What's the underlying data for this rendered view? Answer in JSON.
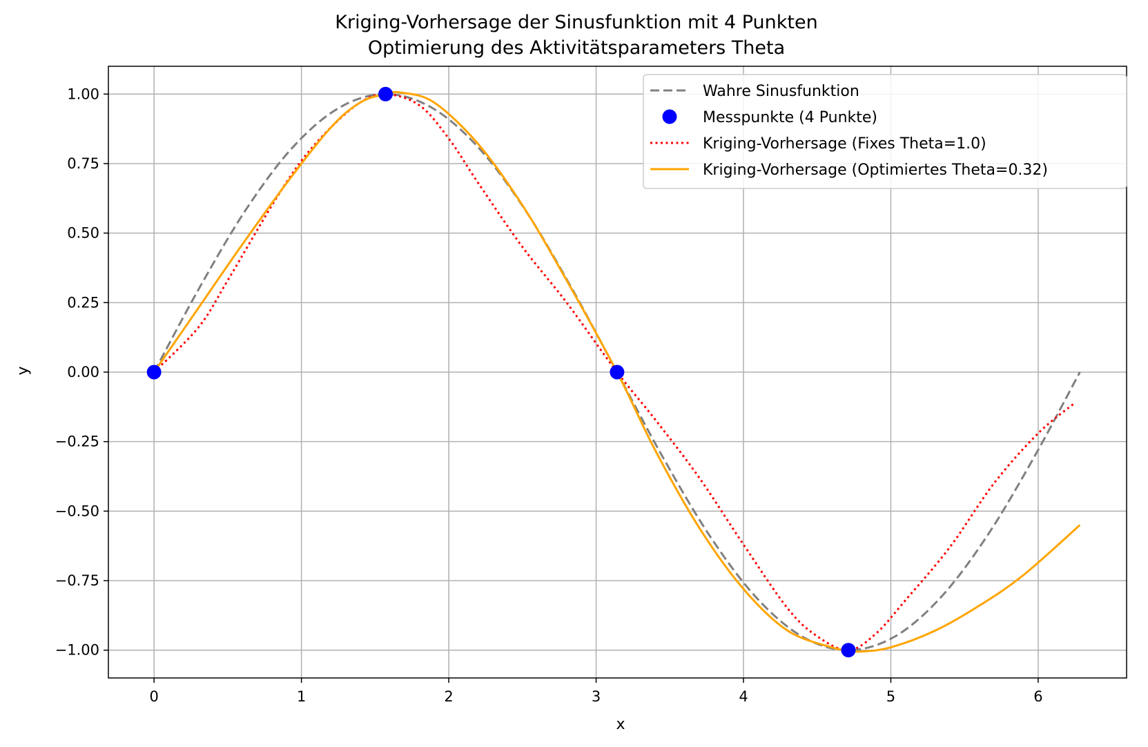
{
  "chart_data": {
    "type": "line",
    "title_line1": "Kriging-Vorhersage der Sinusfunktion mit 4 Punkten",
    "title_line2": "Optimierung des Aktivitätsparameters Theta",
    "xlabel": "x",
    "ylabel": "y",
    "xlim": [
      -0.31,
      6.6
    ],
    "ylim": [
      -1.1,
      1.1
    ],
    "xticks": [
      0,
      1,
      2,
      3,
      4,
      5,
      6
    ],
    "xtick_labels": [
      "0",
      "1",
      "2",
      "3",
      "4",
      "5",
      "6"
    ],
    "yticks": [
      1.0,
      0.75,
      0.5,
      0.25,
      0.0,
      -0.25,
      -0.5,
      -0.75,
      -1.0
    ],
    "ytick_labels": [
      "1.00",
      "0.75",
      "0.50",
      "0.25",
      "0.00",
      "−0.25",
      "−0.50",
      "−0.75",
      "−1.00"
    ],
    "grid": true,
    "legend_position": "top-right",
    "series": [
      {
        "name": "Wahre Sinusfunktion",
        "style": "dashed",
        "color": "#808080",
        "x": [
          0.0,
          0.314,
          0.628,
          0.942,
          1.257,
          1.571,
          1.885,
          2.199,
          2.513,
          2.827,
          3.142,
          3.456,
          3.77,
          4.084,
          4.398,
          4.712,
          5.027,
          5.341,
          5.655,
          5.969,
          6.283
        ],
        "y": [
          0.0,
          0.309,
          0.588,
          0.809,
          0.951,
          1.0,
          0.951,
          0.809,
          0.588,
          0.309,
          0.0,
          -0.309,
          -0.588,
          -0.809,
          -0.951,
          -1.0,
          -0.951,
          -0.809,
          -0.588,
          -0.309,
          0.0
        ]
      },
      {
        "name": "Messpunkte (4 Punkte)",
        "style": "markers",
        "color": "#0000ff",
        "x": [
          0.0,
          1.571,
          3.142,
          4.712
        ],
        "y": [
          0.0,
          1.0,
          0.0,
          -1.0
        ]
      },
      {
        "name": "Kriging-Vorhersage (Fixes Theta=1.0)",
        "style": "dotted",
        "color": "#ff0000",
        "x": [
          0.0,
          0.3,
          0.5,
          0.8,
          1.0,
          1.2,
          1.4,
          1.571,
          1.8,
          2.0,
          2.2,
          2.5,
          2.8,
          3.142,
          3.4,
          3.7,
          4.0,
          4.3,
          4.5,
          4.712,
          4.9,
          5.1,
          5.4,
          5.7,
          6.0,
          6.25
        ],
        "y": [
          0.0,
          0.16,
          0.33,
          0.6,
          0.76,
          0.88,
          0.97,
          1.0,
          0.96,
          0.84,
          0.68,
          0.45,
          0.25,
          0.0,
          -0.17,
          -0.38,
          -0.62,
          -0.85,
          -0.95,
          -1.0,
          -0.94,
          -0.82,
          -0.63,
          -0.4,
          -0.22,
          -0.11
        ]
      },
      {
        "name": "Kriging-Vorhersage (Optimiertes Theta=0.32)",
        "style": "solid",
        "color": "#ffa500",
        "x": [
          0.0,
          0.3,
          0.6,
          0.9,
          1.2,
          1.4,
          1.571,
          1.68,
          1.9,
          2.2,
          2.5,
          2.8,
          3.142,
          3.4,
          3.7,
          4.0,
          4.3,
          4.6,
          4.712,
          4.8,
          5.0,
          5.3,
          5.6,
          5.9,
          6.283
        ],
        "y": [
          0.0,
          0.23,
          0.46,
          0.68,
          0.88,
          0.97,
          1.0,
          1.005,
          0.97,
          0.82,
          0.6,
          0.33,
          0.0,
          -0.28,
          -0.56,
          -0.78,
          -0.93,
          -0.99,
          -1.0,
          -1.005,
          -0.99,
          -0.93,
          -0.84,
          -0.73,
          -0.55
        ]
      }
    ]
  }
}
